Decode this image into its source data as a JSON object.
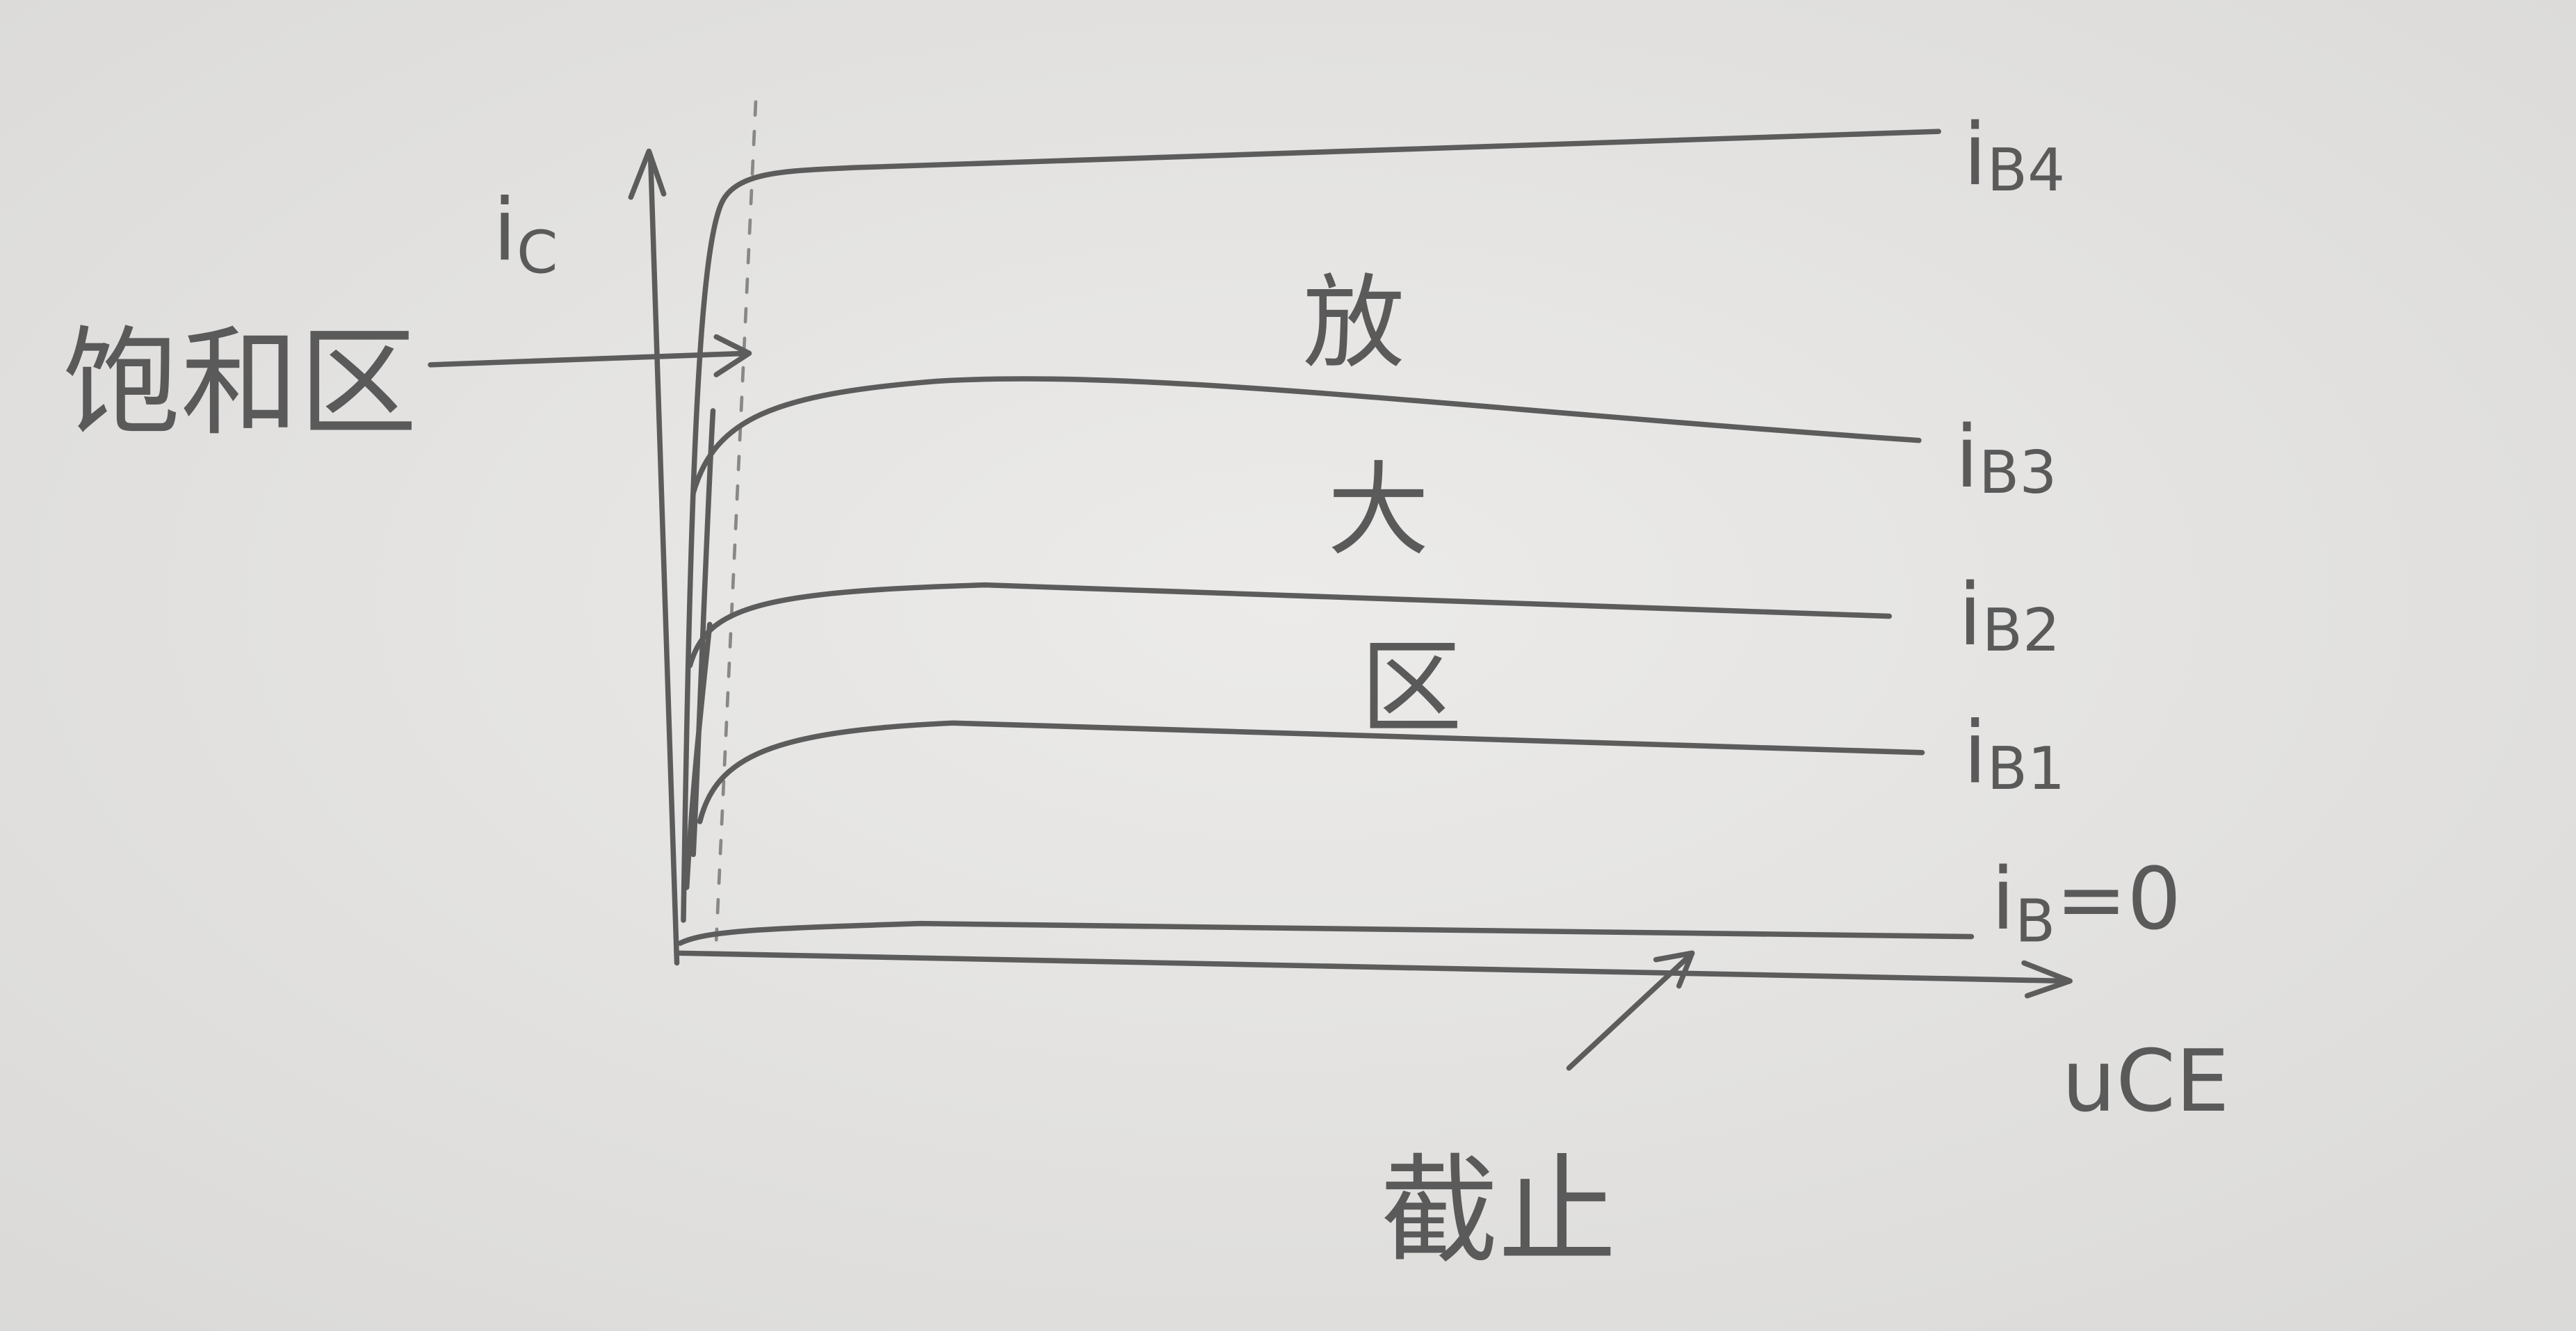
{
  "saturation_region": "饱和区",
  "amplification_region": [
    "放",
    "大",
    "区"
  ],
  "cutoff_region": "截止",
  "axes": {
    "y": {
      "symbol": "i",
      "subscript": "C"
    },
    "x": {
      "symbol": "u",
      "subscript": "CE"
    }
  },
  "curves": [
    {
      "symbol": "i",
      "subscript": "B4"
    },
    {
      "symbol": "i",
      "subscript": "B3"
    },
    {
      "symbol": "i",
      "subscript": "B2"
    },
    {
      "symbol": "i",
      "subscript": "B1"
    },
    {
      "symbol": "i",
      "subscript": "B",
      "suffix": "=0"
    }
  ]
}
